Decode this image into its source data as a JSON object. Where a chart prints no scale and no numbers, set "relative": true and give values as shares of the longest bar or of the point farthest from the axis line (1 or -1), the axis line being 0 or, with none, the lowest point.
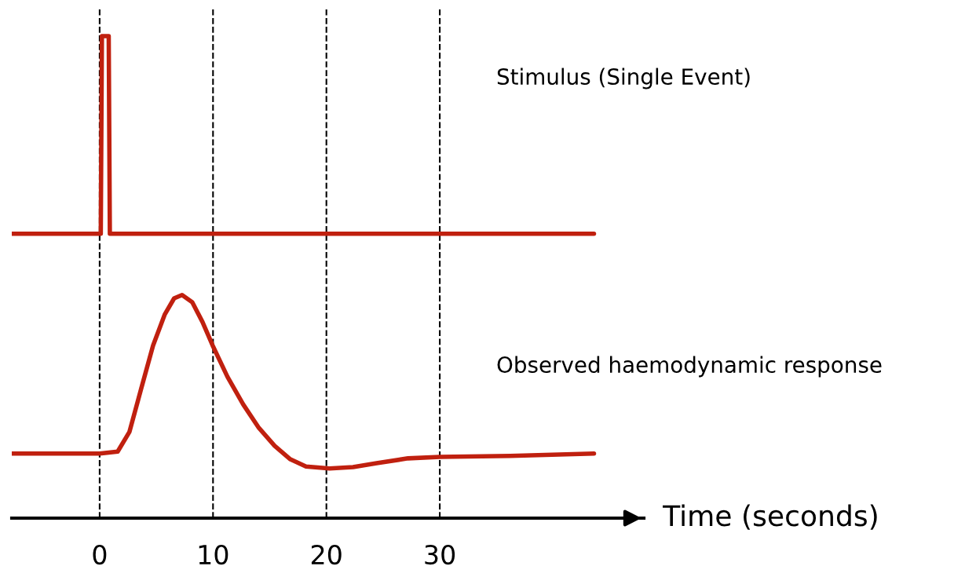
{
  "chart_data": {
    "type": "line",
    "relative": true,
    "series": [
      {
        "color": "#c0200f",
        "x": [
          -7.75,
          0.1,
          0.2,
          0.8,
          0.9,
          43.6
        ],
        "values": [
          0.59,
          0.59,
          1,
          1,
          0.59,
          0.59
        ]
      },
      {
        "color": "#c0200f",
        "x": [
          -7.75,
          0,
          1.59,
          2.63,
          3.67,
          4.71,
          5.75,
          6.57,
          7.27,
          8.17,
          9.07,
          9.97,
          11.28,
          12.66,
          14.05,
          15.43,
          16.82,
          18.2,
          20.28,
          22.35,
          24.43,
          27.2,
          30.03,
          36.2,
          43.6
        ],
        "values": [
          0.134,
          0.134,
          0.138,
          0.179,
          0.269,
          0.358,
          0.423,
          0.456,
          0.463,
          0.448,
          0.407,
          0.358,
          0.293,
          0.236,
          0.187,
          0.15,
          0.122,
          0.107,
          0.103,
          0.106,
          0.114,
          0.124,
          0.127,
          0.129,
          0.134
        ]
      }
    ],
    "xlim": [
      -7.75,
      48
    ],
    "xticks": [
      0,
      10,
      20,
      30
    ],
    "tick_labels": "x",
    "marker": "none",
    "line_style": "solid",
    "xlabel": "Time (seconds)",
    "ref_lines": [
      {
        "axis": "x",
        "value": 0,
        "color": "#000000",
        "line_style": "dashed"
      },
      {
        "axis": "x",
        "value": 10,
        "color": "#000000",
        "line_style": "dashed"
      },
      {
        "axis": "x",
        "value": 20,
        "color": "#000000",
        "line_style": "dashed"
      },
      {
        "axis": "x",
        "value": 30,
        "color": "#000000",
        "line_style": "dashed"
      }
    ],
    "annotations": [
      "Stimulus (Single Event)",
      "Observed haemodynamic response"
    ]
  }
}
